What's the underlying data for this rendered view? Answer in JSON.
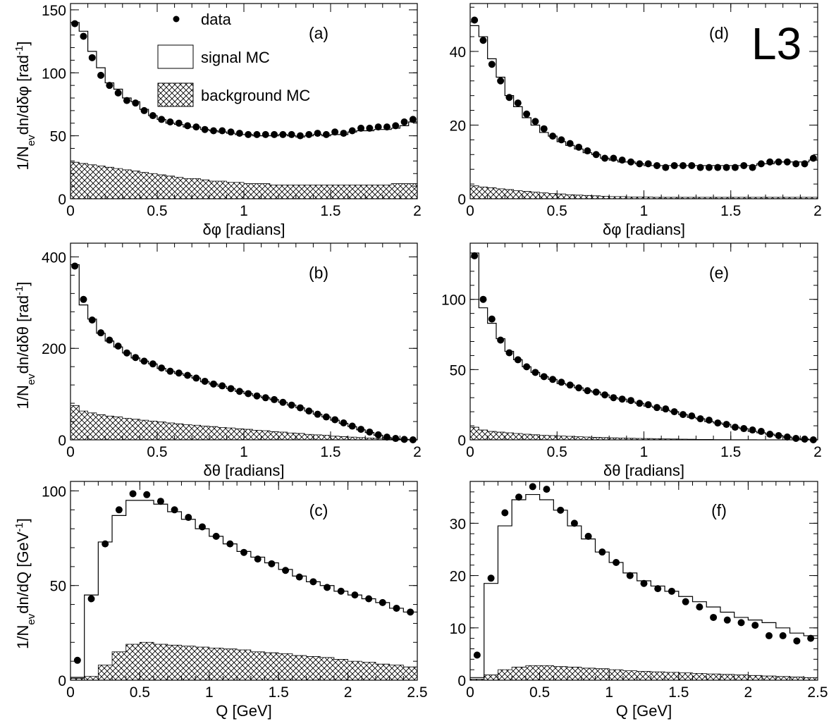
{
  "figure": {
    "experiment_label": "L3",
    "legend": {
      "data": "data",
      "signal": "signal MC",
      "background": "background MC"
    },
    "row_ylabels": [
      {
        "base": "1/N",
        "sub": "ev",
        "rest": "dn/dδφ [rad",
        "sup": "-1",
        "end": "]"
      },
      {
        "base": "1/N",
        "sub": "ev",
        "rest": "dn/dδθ [rad",
        "sup": "-1",
        "end": "]"
      },
      {
        "base": "1/N",
        "sub": "ev",
        "rest": "dn/dQ [GeV",
        "sup": "-1",
        "end": "]"
      }
    ]
  },
  "chart_data": [
    {
      "id": "a",
      "type": "scatter",
      "panel_label": "(a)",
      "xlabel": "δφ [radians]",
      "xlim": [
        0,
        2
      ],
      "ylim": [
        0,
        155
      ],
      "xticks": [
        0,
        0.5,
        1,
        1.5,
        2
      ],
      "yticks": [
        0,
        50,
        100,
        150
      ],
      "bin_width": 0.05,
      "series": [
        {
          "name": "data",
          "values": [
            139,
            129,
            112,
            98,
            90,
            84,
            78,
            76,
            70,
            66,
            63,
            61,
            60,
            58,
            57,
            55,
            54,
            54,
            53,
            52,
            51,
            51,
            51,
            51,
            51,
            51,
            50,
            51,
            52,
            51,
            53,
            52,
            54,
            56,
            56,
            57,
            57,
            58,
            61,
            63
          ]
        },
        {
          "name": "signal MC",
          "values": [
            140,
            133,
            117,
            104,
            92,
            87,
            80,
            77,
            71,
            66,
            63,
            60,
            59,
            57,
            57,
            55,
            54,
            53,
            52,
            51,
            51,
            50,
            50,
            50,
            51,
            50,
            49,
            50,
            51,
            50,
            51,
            51,
            53,
            54,
            54,
            55,
            55,
            56,
            58,
            61
          ]
        },
        {
          "name": "background MC",
          "values": [
            29,
            28,
            27,
            26,
            25,
            24,
            23,
            22,
            21,
            20,
            19,
            18,
            17,
            16,
            16,
            15,
            14,
            14,
            13,
            13,
            12,
            12,
            12,
            11,
            11,
            11,
            11,
            11,
            11,
            11,
            11,
            11,
            11,
            11,
            11,
            11,
            11,
            12,
            12,
            12
          ]
        }
      ]
    },
    {
      "id": "b",
      "type": "scatter",
      "panel_label": "(b)",
      "xlabel": "δθ [radians]",
      "xlim": [
        0,
        2
      ],
      "ylim": [
        0,
        430
      ],
      "xticks": [
        0,
        0.5,
        1,
        1.5,
        2
      ],
      "yticks": [
        0,
        200,
        400
      ],
      "bin_width": 0.05,
      "series": [
        {
          "name": "data",
          "values": [
            380,
            307,
            262,
            234,
            218,
            205,
            190,
            180,
            172,
            166,
            157,
            150,
            146,
            141,
            135,
            128,
            122,
            118,
            112,
            106,
            101,
            96,
            92,
            88,
            82,
            76,
            70,
            63,
            56,
            50,
            44,
            37,
            30,
            23,
            17,
            11,
            6,
            3,
            1,
            0
          ]
        },
        {
          "name": "signal MC",
          "values": [
            383,
            295,
            264,
            233,
            216,
            203,
            190,
            179,
            172,
            166,
            156,
            150,
            145,
            141,
            135,
            127,
            122,
            117,
            112,
            106,
            101,
            96,
            92,
            88,
            82,
            76,
            70,
            63,
            56,
            50,
            43,
            36,
            29,
            22,
            16,
            10,
            5,
            2,
            1,
            0
          ]
        },
        {
          "name": "background MC",
          "values": [
            75,
            63,
            59,
            55,
            52,
            50,
            47,
            45,
            43,
            41,
            39,
            37,
            35,
            33,
            32,
            30,
            29,
            27,
            26,
            24,
            23,
            21,
            20,
            18,
            17,
            15,
            14,
            12,
            11,
            10,
            8,
            7,
            6,
            5,
            4,
            3,
            2,
            1,
            1,
            0
          ]
        }
      ]
    },
    {
      "id": "c",
      "type": "scatter",
      "panel_label": "(c)",
      "xlabel": "Q [GeV]",
      "xlim": [
        0,
        2.5
      ],
      "ylim": [
        0,
        105
      ],
      "xticks": [
        0,
        0.5,
        1,
        1.5,
        2,
        2.5
      ],
      "yticks": [
        0,
        50,
        100
      ],
      "bin_width": 0.1,
      "series": [
        {
          "name": "data",
          "values": [
            10.5,
            43,
            72,
            90,
            98.5,
            98,
            94.5,
            90,
            86,
            81,
            76,
            72,
            67.5,
            64,
            61.5,
            58,
            54.5,
            52,
            49,
            47,
            45,
            43,
            41,
            38,
            36
          ]
        },
        {
          "name": "signal MC",
          "values": [
            1.5,
            45,
            73,
            87,
            95,
            95,
            93,
            89,
            85,
            80,
            76,
            72,
            68,
            65,
            62,
            58.5,
            55,
            52,
            50,
            47,
            45,
            43,
            41,
            38,
            36
          ]
        },
        {
          "name": "background MC",
          "values": [
            1,
            2,
            8,
            15,
            19,
            20,
            19,
            18.5,
            18,
            17.5,
            17,
            16.5,
            16,
            15,
            14.5,
            14,
            13,
            12.5,
            12,
            11,
            10,
            9.5,
            8.5,
            8,
            7
          ]
        }
      ]
    },
    {
      "id": "d",
      "type": "scatter",
      "panel_label": "(d)",
      "xlabel": "δφ [radians]",
      "xlim": [
        0,
        2
      ],
      "ylim": [
        0,
        53
      ],
      "xticks": [
        0,
        0.5,
        1,
        1.5,
        2
      ],
      "yticks": [
        0,
        20,
        40
      ],
      "bin_width": 0.05,
      "series": [
        {
          "name": "data",
          "values": [
            48.5,
            43,
            36.5,
            32,
            27.5,
            26,
            23,
            21,
            19,
            17,
            16,
            15,
            14,
            13,
            12,
            11,
            11,
            10.5,
            10,
            9.5,
            9.5,
            9,
            8.5,
            9,
            9,
            9,
            8.5,
            8.5,
            8.5,
            8.5,
            8.5,
            9,
            8.5,
            9.5,
            10,
            10,
            10,
            9.5,
            9.5,
            11
          ]
        },
        {
          "name": "signal MC",
          "values": [
            47,
            44,
            38,
            33,
            28,
            25,
            22,
            20,
            18,
            17,
            15.5,
            14.5,
            13.5,
            12.5,
            12,
            11,
            10.5,
            10,
            10,
            9.5,
            9,
            9,
            9,
            9,
            9,
            9,
            9,
            9,
            9,
            9,
            9,
            9,
            9,
            9.5,
            9.5,
            10,
            10,
            10,
            10,
            10.5
          ]
        },
        {
          "name": "background MC",
          "values": [
            3.5,
            3.2,
            3,
            2.7,
            2.5,
            2.2,
            2,
            1.8,
            1.6,
            1.4,
            1.3,
            1.1,
            1,
            0.9,
            0.8,
            0.7,
            0.6,
            0.6,
            0.5,
            0.5,
            0.5,
            0.4,
            0.4,
            0.4,
            0.4,
            0.4,
            0.4,
            0.4,
            0.4,
            0.4,
            0.4,
            0.4,
            0.4,
            0.4,
            0.4,
            0.4,
            0.4,
            0.4,
            0.4,
            0.4
          ]
        }
      ]
    },
    {
      "id": "e",
      "type": "scatter",
      "panel_label": "(e)",
      "xlabel": "δθ [radians]",
      "xlim": [
        0,
        2
      ],
      "ylim": [
        0,
        140
      ],
      "xticks": [
        0,
        0.5,
        1,
        1.5,
        2
      ],
      "yticks": [
        0,
        50,
        100
      ],
      "bin_width": 0.05,
      "series": [
        {
          "name": "data",
          "values": [
            131,
            100,
            86,
            71,
            62,
            57,
            52,
            48,
            45,
            43,
            41,
            39,
            37,
            35,
            34,
            32,
            30,
            29,
            28,
            26,
            25,
            23,
            22,
            20,
            18,
            17,
            15,
            14,
            12,
            11,
            9,
            8,
            7,
            6,
            4,
            3,
            2,
            1,
            0.5,
            0
          ]
        },
        {
          "name": "signal MC",
          "values": [
            133,
            94,
            83,
            72,
            63,
            57,
            52,
            48,
            45,
            43,
            40,
            39,
            37,
            35,
            34,
            32,
            30,
            29,
            27,
            26,
            24,
            23,
            21,
            20,
            18,
            16,
            15,
            13,
            12,
            11,
            9,
            8,
            6,
            5,
            4,
            3,
            2,
            1,
            0.5,
            0
          ]
        },
        {
          "name": "background MC",
          "values": [
            9,
            7,
            6,
            5.5,
            5,
            4.5,
            4,
            3.6,
            3.2,
            3,
            2.7,
            2.5,
            2.2,
            2,
            1.8,
            1.6,
            1.4,
            1.3,
            1.1,
            1,
            0.9,
            0.8,
            0.7,
            0.6,
            0.5,
            0.4,
            0.3,
            0.3,
            0.2,
            0.2,
            0.1,
            0.1,
            0.1,
            0,
            0,
            0,
            0,
            0,
            0,
            0
          ]
        }
      ]
    },
    {
      "id": "f",
      "type": "scatter",
      "panel_label": "(f)",
      "xlabel": "Q [GeV]",
      "xlim": [
        0,
        2.5
      ],
      "ylim": [
        0,
        38
      ],
      "xticks": [
        0,
        0.5,
        1,
        1.5,
        2,
        2.5
      ],
      "yticks": [
        0,
        10,
        20,
        30
      ],
      "bin_width": 0.1,
      "series": [
        {
          "name": "data",
          "values": [
            4.8,
            19.5,
            32,
            35,
            37,
            36.5,
            32.5,
            30,
            27.5,
            24.5,
            22.5,
            20,
            18.5,
            17.5,
            17,
            15,
            14,
            12,
            11.5,
            11,
            10.5,
            8.5,
            8.5,
            7.5,
            8
          ]
        },
        {
          "name": "signal MC",
          "values": [
            0.5,
            18.5,
            29.5,
            34.5,
            35.5,
            34.5,
            32.5,
            29.5,
            27,
            24.5,
            22.5,
            20.5,
            19,
            18,
            17,
            16,
            15,
            14,
            13,
            12,
            11.5,
            11,
            10,
            9,
            8.5
          ]
        },
        {
          "name": "background MC",
          "values": [
            0.2,
            1,
            2,
            2.5,
            2.8,
            2.8,
            2.6,
            2.5,
            2.3,
            2.2,
            2,
            1.8,
            1.7,
            1.6,
            1.5,
            1.4,
            1.3,
            1.2,
            1.1,
            1,
            0.9,
            0.8,
            0.7,
            0.6,
            0.5
          ]
        }
      ]
    }
  ]
}
